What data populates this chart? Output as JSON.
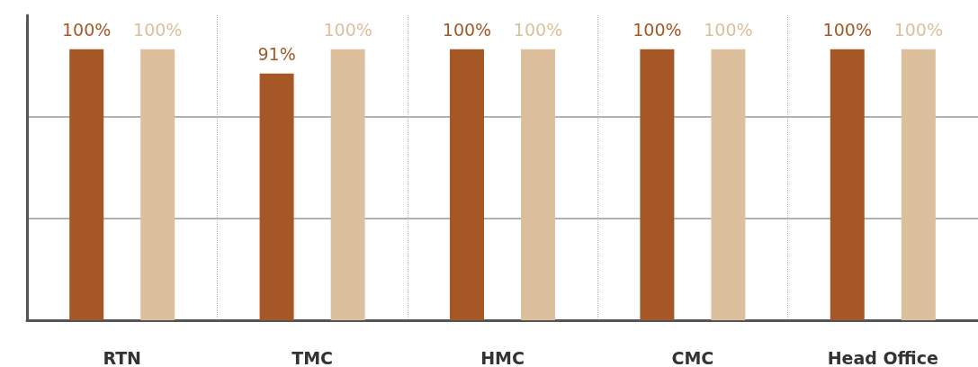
{
  "chart_data": {
    "type": "bar",
    "categories": [
      "RTN",
      "TMC",
      "HMC",
      "CMC",
      "Head Office"
    ],
    "series": [
      {
        "color": "#a65726",
        "values": [
          100,
          91,
          100,
          100,
          100
        ],
        "value_labels": [
          "100%",
          "91%",
          "100%",
          "100%",
          "100%"
        ]
      },
      {
        "color": "#dcbf9c",
        "values": [
          100,
          100,
          100,
          100,
          100
        ],
        "value_labels": [
          "100%",
          "100%",
          "100%",
          "100%",
          "100%"
        ]
      }
    ],
    "ylim": [
      0,
      112.5
    ],
    "yticks": [
      {
        "value": 0,
        "label": null
      },
      {
        "value": 37.5,
        "label": null
      },
      {
        "value": 75,
        "label": null
      }
    ],
    "tick_labels": "x",
    "grid": true
  }
}
